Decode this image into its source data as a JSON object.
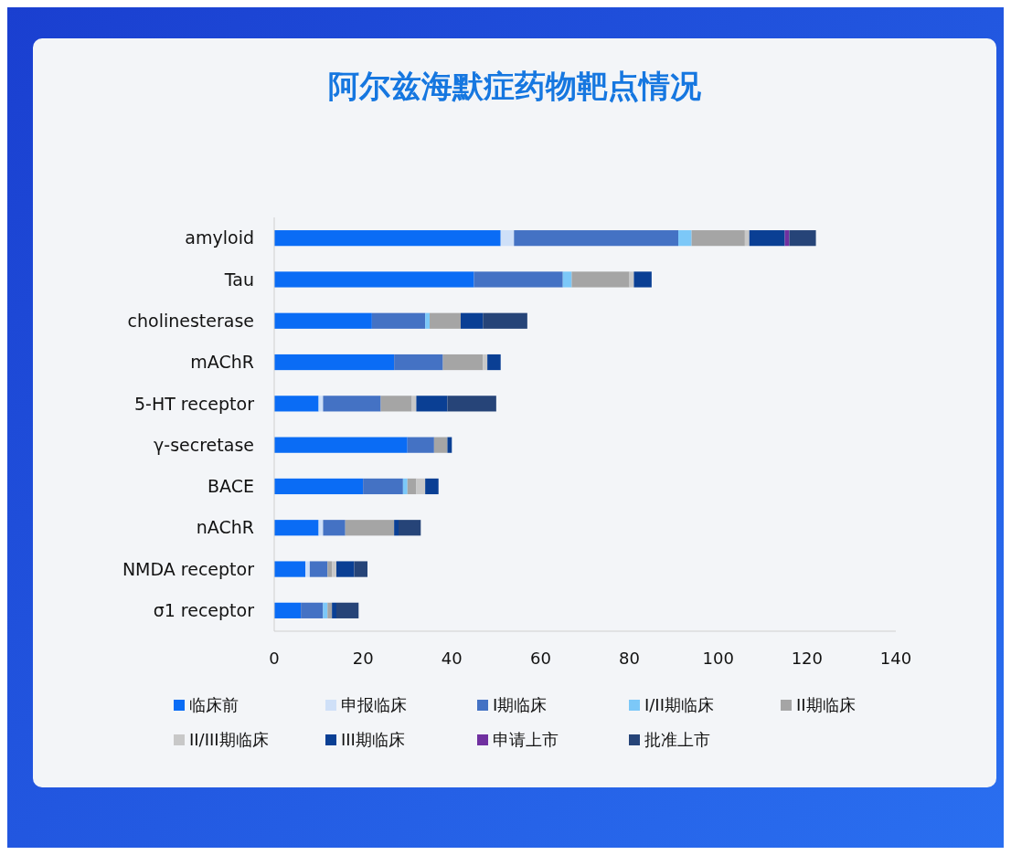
{
  "chart_data": {
    "type": "bar",
    "title": "阿尔兹海默症药物靶点情况",
    "orientation": "horizontal",
    "stacked": true,
    "categories": [
      "amyloid",
      "Tau",
      "cholinesterase",
      "mAChR",
      "5-HT receptor",
      "γ-secretase",
      "BACE",
      "nAChR",
      "NMDA receptor",
      "σ1 receptor"
    ],
    "series": [
      {
        "name": "临床前",
        "color": "#0a6cf5",
        "values": [
          51,
          45,
          22,
          27,
          10,
          30,
          20,
          10,
          7,
          6
        ]
      },
      {
        "name": "申报临床",
        "color": "#cfe0f8",
        "values": [
          3,
          0,
          0,
          0,
          1,
          0,
          0,
          1,
          1,
          0
        ]
      },
      {
        "name": "I期临床",
        "color": "#4472c4",
        "values": [
          37,
          20,
          12,
          11,
          13,
          6,
          9,
          5,
          4,
          5
        ]
      },
      {
        "name": "I/II期临床",
        "color": "#7cc8f8",
        "values": [
          3,
          2,
          1,
          0,
          0,
          0,
          1,
          0,
          0,
          1
        ]
      },
      {
        "name": "II期临床",
        "color": "#a5a5a5",
        "values": [
          12,
          13,
          7,
          9,
          7,
          3,
          2,
          11,
          1,
          1
        ]
      },
      {
        "name": "II/III期临床",
        "color": "#c8c8c8",
        "values": [
          1,
          1,
          0,
          1,
          1,
          0,
          2,
          0,
          1,
          0
        ]
      },
      {
        "name": "III期临床",
        "color": "#0a3f94",
        "values": [
          8,
          4,
          5,
          3,
          7,
          1,
          3,
          1,
          4,
          1
        ]
      },
      {
        "name": "申请上市",
        "color": "#7030a0",
        "values": [
          1,
          0,
          0,
          0,
          0,
          0,
          0,
          0,
          0,
          0
        ]
      },
      {
        "name": "批准上市",
        "color": "#264478",
        "values": [
          6,
          0,
          10,
          0,
          11,
          0,
          0,
          5,
          3,
          5
        ]
      }
    ],
    "xlim": [
      0,
      140
    ],
    "xticks": [
      0,
      20,
      40,
      60,
      80,
      100,
      120,
      140
    ],
    "grid": false,
    "legend": "bottom"
  }
}
